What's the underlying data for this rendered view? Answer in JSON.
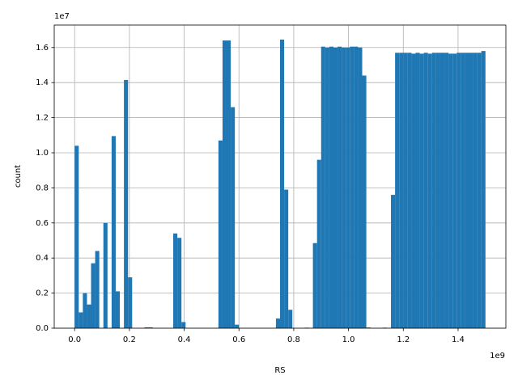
{
  "chart_data": {
    "type": "histogram",
    "x_label": "RS",
    "y_label": "count",
    "x_offset_label": "1e9",
    "y_offset_label": "1e7",
    "color": "#1f77b4",
    "grid": true,
    "bins": [
      0,
      15000000,
      30000000,
      45000000,
      60000000,
      75000000,
      90000000,
      105000000,
      120000000,
      135000000,
      150000000,
      165000000,
      180000000,
      195000000,
      210000000,
      225000000,
      240000000,
      255000000,
      270000000,
      285000000,
      300000000,
      315000000,
      330000000,
      345000000,
      360000000,
      375000000,
      390000000,
      405000000,
      420000000,
      435000000,
      450000000,
      465000000,
      480000000,
      495000000,
      510000000,
      525000000,
      540000000,
      555000000,
      570000000,
      585000000,
      600000000,
      615000000,
      630000000,
      645000000,
      660000000,
      675000000,
      690000000,
      705000000,
      720000000,
      735000000,
      750000000,
      765000000,
      780000000,
      795000000,
      810000000,
      825000000,
      840000000,
      855000000,
      870000000,
      885000000,
      900000000,
      915000000,
      930000000,
      945000000,
      960000000,
      975000000,
      990000000,
      1005000000,
      1020000000,
      1035000000,
      1050000000,
      1065000000,
      1080000000,
      1095000000,
      1110000000,
      1125000000,
      1140000000,
      1155000000,
      1170000000,
      1185000000,
      1200000000,
      1215000000,
      1230000000,
      1245000000,
      1260000000,
      1275000000,
      1290000000,
      1305000000,
      1320000000,
      1335000000,
      1350000000,
      1365000000,
      1380000000,
      1395000000,
      1410000000,
      1425000000,
      1440000000,
      1455000000,
      1470000000,
      1485000000,
      1500000000
    ],
    "counts": [
      10400000,
      900000,
      2000000,
      1350000,
      3700000,
      4400000,
      0,
      6000000,
      0,
      10950000,
      2100000,
      0,
      14150000,
      2900000,
      0,
      0,
      0,
      50000,
      50000,
      0,
      0,
      0,
      0,
      0,
      5400000,
      5150000,
      350000,
      0,
      0,
      0,
      0,
      0,
      0,
      0,
      0,
      10700000,
      16400000,
      16400000,
      12600000,
      200000,
      0,
      0,
      0,
      0,
      0,
      0,
      0,
      0,
      0,
      550000,
      16450000,
      7900000,
      1050000,
      0,
      0,
      0,
      30000,
      0,
      4850000,
      9600000,
      16050000,
      16000000,
      16050000,
      16000000,
      16050000,
      16000000,
      16000000,
      16050000,
      16050000,
      16000000,
      14400000,
      40000,
      0,
      0,
      0,
      30000,
      0,
      7600000,
      15700000,
      15700000,
      15700000,
      15700000,
      15650000,
      15700000,
      15650000,
      15700000,
      15650000,
      15700000,
      15700000,
      15700000,
      15700000,
      15650000,
      15650000,
      15700000,
      15700000,
      15700000,
      15700000,
      15700000,
      15700000,
      15800000
    ],
    "xlim": [
      -74500000,
      1574500000
    ],
    "xticks": [
      {
        "value": 0,
        "label": "0.0"
      },
      {
        "value": 200000000,
        "label": "0.2"
      },
      {
        "value": 400000000,
        "label": "0.4"
      },
      {
        "value": 600000000,
        "label": "0.6"
      },
      {
        "value": 800000000,
        "label": "0.8"
      },
      {
        "value": 1000000000,
        "label": "1.0"
      },
      {
        "value": 1200000000,
        "label": "1.2"
      },
      {
        "value": 1400000000,
        "label": "1.4"
      }
    ],
    "ylim": [
      0,
      17280000
    ],
    "yticks": [
      {
        "value": 0,
        "label": "0.0"
      },
      {
        "value": 2000000,
        "label": "0.2"
      },
      {
        "value": 4000000,
        "label": "0.4"
      },
      {
        "value": 6000000,
        "label": "0.6"
      },
      {
        "value": 8000000,
        "label": "0.8"
      },
      {
        "value": 10000000,
        "label": "1.0"
      },
      {
        "value": 12000000,
        "label": "1.2"
      },
      {
        "value": 14000000,
        "label": "1.4"
      },
      {
        "value": 16000000,
        "label": "1.6"
      }
    ]
  }
}
